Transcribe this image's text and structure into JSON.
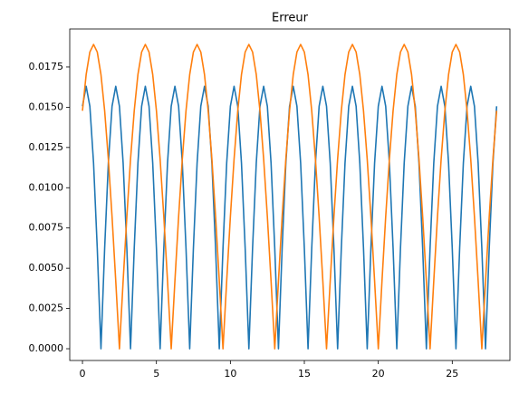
{
  "chart_data": {
    "type": "line",
    "title": "Erreur",
    "x": [
      0,
      0.25,
      0.5,
      0.75,
      1,
      1.25,
      1.5,
      1.75,
      2,
      2.25,
      2.5,
      2.75,
      3,
      3.25,
      3.5,
      3.75,
      4,
      4.25,
      4.5,
      4.75,
      5,
      5.25,
      5.5,
      5.75,
      6,
      6.25,
      6.5,
      6.75,
      7,
      7.25,
      7.5,
      7.75,
      8,
      8.25,
      8.5,
      8.75,
      9,
      9.25,
      9.5,
      9.75,
      10,
      10.25,
      10.5,
      10.75,
      11,
      11.25,
      11.5,
      11.75,
      12,
      12.25,
      12.5,
      12.75,
      13,
      13.25,
      13.5,
      13.75,
      14,
      14.25,
      14.5,
      14.75,
      15,
      15.25,
      15.5,
      15.75,
      16,
      16.25,
      16.5,
      16.75,
      17,
      17.25,
      17.5,
      17.75,
      18,
      18.25,
      18.5,
      18.75,
      19,
      19.25,
      19.5,
      19.75,
      20,
      20.25,
      20.5,
      20.75,
      21,
      21.25,
      21.5,
      21.75,
      22,
      22.25,
      22.5,
      22.75,
      23,
      23.25,
      23.5,
      23.75,
      24,
      24.25,
      24.5,
      24.75,
      25,
      25.25,
      25.5,
      25.75,
      26,
      26.25,
      26.5,
      26.75,
      27,
      27.25,
      27.5,
      27.75,
      28
    ],
    "series": [
      {
        "color": "#1f77b4",
        "values": [
          0.01506,
          0.0163,
          0.01506,
          0.01153,
          0.00624,
          0,
          0.00624,
          0.01153,
          0.01506,
          0.0163,
          0.01506,
          0.01153,
          0.00624,
          0,
          0.00624,
          0.01153,
          0.01506,
          0.0163,
          0.01506,
          0.01153,
          0.00624,
          0,
          0.00624,
          0.01153,
          0.01506,
          0.0163,
          0.01506,
          0.01153,
          0.00624,
          0,
          0.00624,
          0.01153,
          0.01506,
          0.0163,
          0.01506,
          0.01153,
          0.00624,
          0,
          0.00624,
          0.01153,
          0.01506,
          0.0163,
          0.01506,
          0.01153,
          0.00624,
          0,
          0.00624,
          0.01153,
          0.01506,
          0.0163,
          0.01506,
          0.01153,
          0.00624,
          0,
          0.00624,
          0.01153,
          0.01506,
          0.0163,
          0.01506,
          0.01153,
          0.00624,
          0,
          0.00624,
          0.01153,
          0.01506,
          0.0163,
          0.01506,
          0.01153,
          0.00624,
          0,
          0.00624,
          0.01153,
          0.01506,
          0.0163,
          0.01506,
          0.01153,
          0.00624,
          0,
          0.00624,
          0.01153,
          0.01506,
          0.0163,
          0.01506,
          0.01153,
          0.00624,
          0,
          0.00624,
          0.01153,
          0.01506,
          0.0163,
          0.01506,
          0.01153,
          0.00624,
          0,
          0.00624,
          0.01153,
          0.01506,
          0.0163,
          0.01506,
          0.01153,
          0.00624,
          0,
          0.00624,
          0.01153,
          0.01506,
          0.0163,
          0.01506,
          0.01153,
          0.00624,
          0,
          0.00624,
          0.01153,
          0.01506
        ]
      },
      {
        "color": "#ff7f0e",
        "values": [
          0.01478,
          0.01703,
          0.01843,
          0.0189,
          0.01843,
          0.01703,
          0.01478,
          0.01178,
          0.0082,
          0.00421,
          0,
          0.00421,
          0.0082,
          0.01178,
          0.01478,
          0.01703,
          0.01843,
          0.0189,
          0.01843,
          0.01703,
          0.01478,
          0.01178,
          0.0082,
          0.00421,
          0,
          0.00421,
          0.0082,
          0.01178,
          0.01478,
          0.01703,
          0.01843,
          0.0189,
          0.01843,
          0.01703,
          0.01478,
          0.01178,
          0.0082,
          0.00421,
          0,
          0.00421,
          0.0082,
          0.01178,
          0.01478,
          0.01703,
          0.01843,
          0.0189,
          0.01843,
          0.01703,
          0.01478,
          0.01178,
          0.0082,
          0.00421,
          0,
          0.00421,
          0.0082,
          0.01178,
          0.01478,
          0.01703,
          0.01843,
          0.0189,
          0.01843,
          0.01703,
          0.01478,
          0.01178,
          0.0082,
          0.00421,
          0,
          0.00421,
          0.0082,
          0.01178,
          0.01478,
          0.01703,
          0.01843,
          0.0189,
          0.01843,
          0.01703,
          0.01478,
          0.01178,
          0.0082,
          0.00421,
          0,
          0.00421,
          0.0082,
          0.01178,
          0.01478,
          0.01703,
          0.01843,
          0.0189,
          0.01843,
          0.01703,
          0.01478,
          0.01178,
          0.0082,
          0.00421,
          0,
          0.00421,
          0.0082,
          0.01178,
          0.01478,
          0.01703,
          0.01843,
          0.0189,
          0.01843,
          0.01703,
          0.01478,
          0.01178,
          0.0082,
          0.00421,
          0,
          0.00421,
          0.0082,
          0.01178,
          0.01478
        ]
      }
    ],
    "xlim": [
      -0.86,
      28.9
    ],
    "xticks": [
      0,
      5,
      10,
      15,
      20,
      25
    ],
    "ylim": [
      -0.00073,
      0.01986
    ],
    "yticks": [
      {
        "value": 0,
        "label": "0.0000"
      },
      {
        "value": 0.0025,
        "label": "0.0025"
      },
      {
        "value": 0.005,
        "label": "0.0050"
      },
      {
        "value": 0.0075,
        "label": "0.0075"
      },
      {
        "value": 0.01,
        "label": "0.0100"
      },
      {
        "value": 0.0125,
        "label": "0.0125"
      },
      {
        "value": 0.015,
        "label": "0.0150"
      },
      {
        "value": 0.0175,
        "label": "0.0175"
      }
    ],
    "grid": false
  }
}
